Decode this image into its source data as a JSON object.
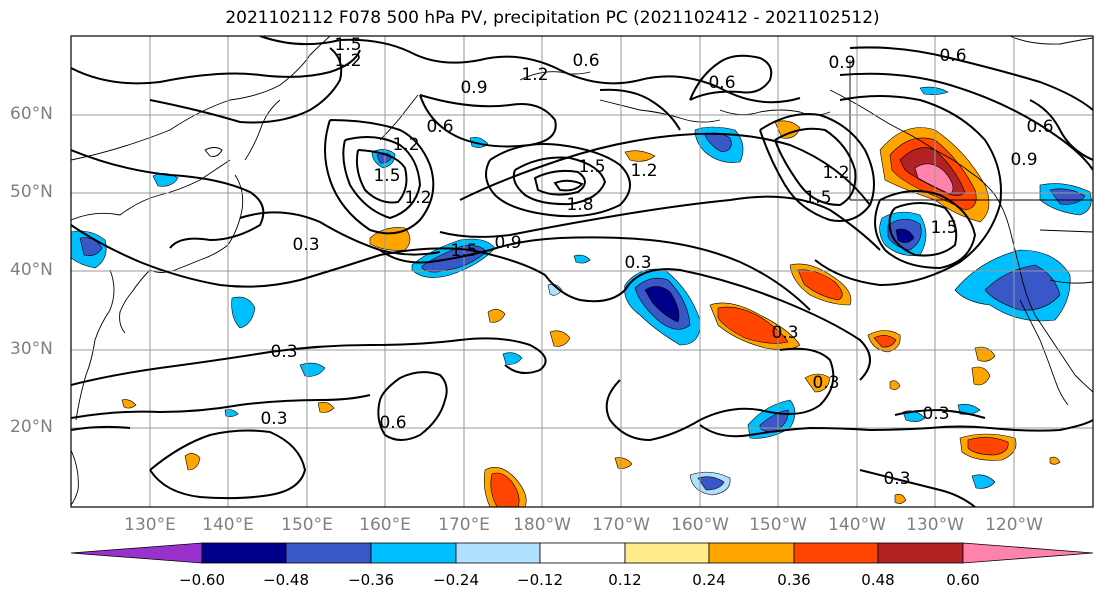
{
  "title": "2021102112 F078 500 hPa PV, precipitation PC (2021102412 - 2021102512)",
  "lat_labels": [
    "60°N",
    "50°N",
    "40°N",
    "30°N",
    "20°N"
  ],
  "lon_labels": [
    "130°E",
    "140°E",
    "150°E",
    "160°E",
    "170°E",
    "180°W",
    "170°W",
    "160°W",
    "150°W",
    "140°W",
    "130°W",
    "120°W"
  ],
  "contour_labels": [
    "1.5",
    "1.2",
    "0.9",
    "0.6",
    "0.6",
    "1.2",
    "0.9",
    "0.6",
    "0.6",
    "1.5",
    "1.2",
    "0.6",
    "1.5",
    "1.2",
    "1.2",
    "0.9",
    "1.5",
    "1.8",
    "1.2",
    "0.9",
    "0.3",
    "0.3",
    "1.5",
    "1.5",
    "0.3",
    "0.3",
    "0.3",
    "0.6",
    "0.3",
    "0.3",
    "0.3"
  ],
  "colorbar": {
    "ticks": [
      "−0.60",
      "−0.48",
      "−0.36",
      "−0.24",
      "−0.12",
      "0.12",
      "0.24",
      "0.36",
      "0.48",
      "0.60"
    ],
    "colors": [
      "#9932cc",
      "#00008b",
      "#3858c8",
      "#00bfff",
      "#b0e2ff",
      "#ffffff",
      "#ffec8b",
      "#ffa500",
      "#ff4500",
      "#b22222",
      "#ff82ab"
    ]
  }
}
